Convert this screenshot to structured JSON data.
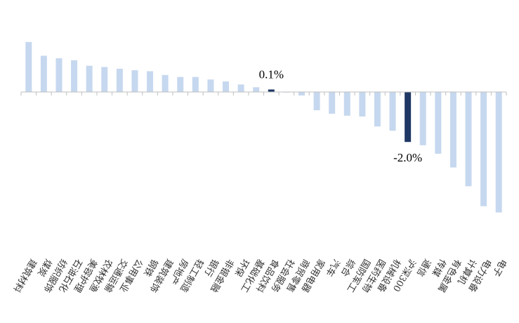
{
  "chart_data": {
    "type": "bar",
    "categories": [
      "建筑材料",
      "煤炭",
      "纺织服饰",
      "石油石化",
      "美容护理",
      "农林牧渔",
      "交通运输",
      "公用事业",
      "钢铁",
      "建筑装饰",
      "房地产",
      "轻工制造",
      "银行",
      "非银金融",
      "环保",
      "基础化工",
      "食品饮料",
      "社会服务",
      "商贸零售",
      "家用电器",
      "汽车",
      "综合",
      "国防军工",
      "医药生物",
      "机械设备",
      "沪深300",
      "通信",
      "传媒",
      "有色金属",
      "计算机",
      "电力设备",
      "电子"
    ],
    "values": [
      2.0,
      1.45,
      1.35,
      1.27,
      1.05,
      1.0,
      0.93,
      0.87,
      0.83,
      0.68,
      0.6,
      0.6,
      0.5,
      0.42,
      0.3,
      0.19,
      0.1,
      -0.02,
      -0.14,
      -0.73,
      -0.87,
      -0.95,
      -0.98,
      -1.38,
      -1.55,
      -2.0,
      -2.13,
      -2.47,
      -3.02,
      -3.77,
      -4.57,
      -4.82
    ],
    "highlight_categories": [
      "食品饮料",
      "沪深300"
    ],
    "data_labels": [
      {
        "category": "食品饮料",
        "text": "0.1%"
      },
      {
        "category": "沪深300",
        "text": "-2.0%"
      }
    ],
    "colors": {
      "default_bar": "#c6d8ef",
      "highlight_bar": "#1f3864",
      "axis": "#bfbfbf"
    },
    "title": "",
    "xlabel": "",
    "ylabel": "",
    "grid": false,
    "legend": "none"
  }
}
